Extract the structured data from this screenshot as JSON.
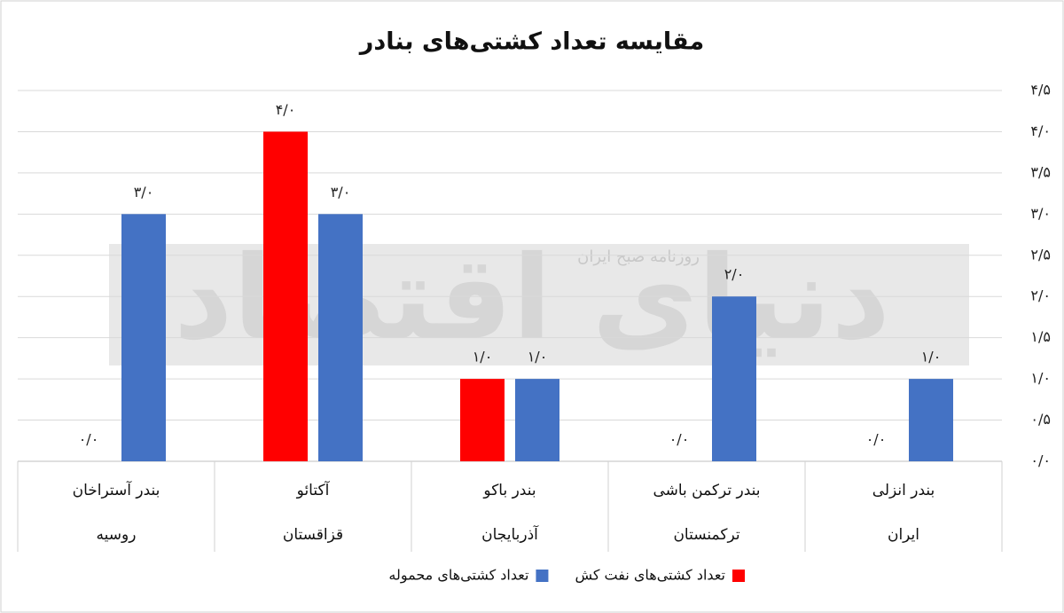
{
  "chart_data": {
    "type": "bar",
    "title": "مقایسه تعداد کشتی‌های بنادر",
    "watermark": "روزنامه صبح ایران",
    "watermark_brand": "دنیای اقتصاد",
    "categories": [
      "بندر آستراخان",
      "آکتائو",
      "بندر باکو",
      "بندر ترکمن باشی",
      "بندر انزلی"
    ],
    "category_groups": [
      "روسیه",
      "قزاقستان",
      "آذربایجان",
      "ترکمنستان",
      "ایران"
    ],
    "series": [
      {
        "name": "تعداد کشتی‌های نفت کش",
        "color": "#ff0000",
        "values": [
          0,
          4,
          1,
          0,
          0
        ],
        "value_labels": [
          "۰/۰",
          "۴/۰",
          "۱/۰",
          "۰/۰",
          "۰/۰"
        ]
      },
      {
        "name": "تعداد کشتی‌های محموله",
        "color": "#4472c4",
        "values": [
          3,
          3,
          1,
          2,
          1
        ],
        "value_labels": [
          "۳/۰",
          "۳/۰",
          "۱/۰",
          "۲/۰",
          "۱/۰"
        ]
      }
    ],
    "ylim": [
      0,
      4.5
    ],
    "yticks": [
      {
        "value": 0,
        "label": "۰/۰"
      },
      {
        "value": 0.5,
        "label": "۰/۵"
      },
      {
        "value": 1,
        "label": "۱/۰"
      },
      {
        "value": 1.5,
        "label": "۱/۵"
      },
      {
        "value": 2,
        "label": "۲/۰"
      },
      {
        "value": 2.5,
        "label": "۲/۵"
      },
      {
        "value": 3,
        "label": "۳/۰"
      },
      {
        "value": 3.5,
        "label": "۳/۵"
      },
      {
        "value": 4,
        "label": "۴/۰"
      },
      {
        "value": 4.5,
        "label": "۴/۵"
      }
    ],
    "grid": true,
    "legend": "bottom"
  }
}
